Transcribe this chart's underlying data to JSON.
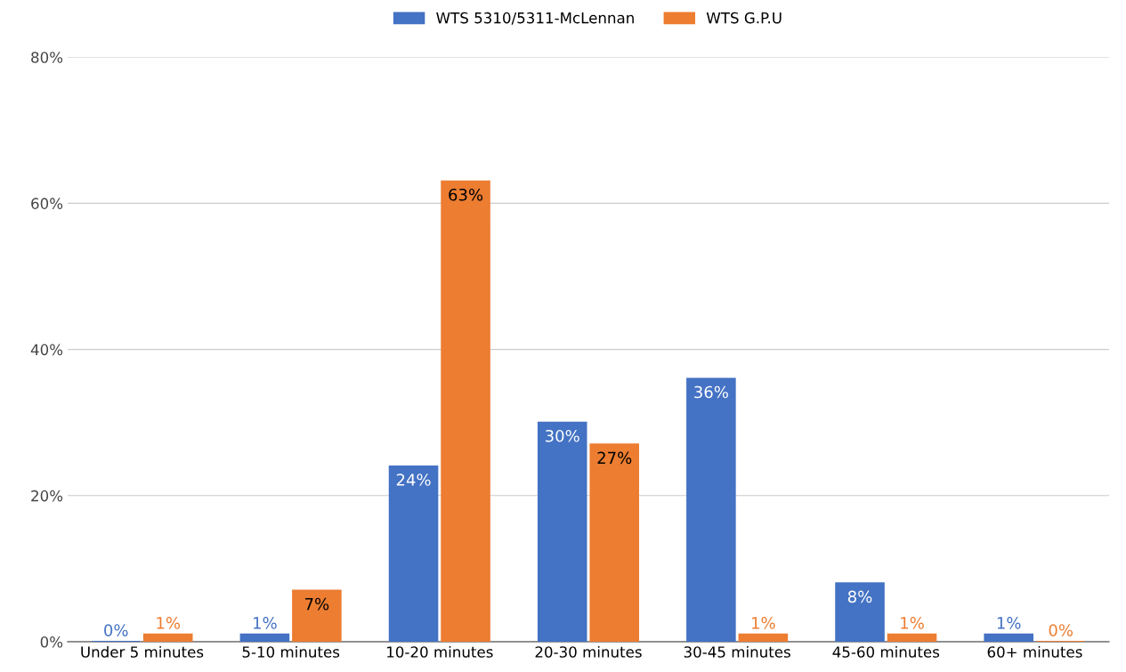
{
  "chart_data": {
    "type": "bar",
    "categories": [
      "Under 5 minutes",
      "5-10 minutes",
      "10-20 minutes",
      "20-30 minutes",
      "30-45 minutes",
      "45-60 minutes",
      "60+ minutes"
    ],
    "series": [
      {
        "name": "WTS 5310/5311-McLennan",
        "color": "#4472c4",
        "values": [
          0,
          1,
          24,
          30,
          36,
          8,
          1
        ],
        "value_labels": [
          "0%",
          "1%",
          "24%",
          "30%",
          "36%",
          "8%",
          "1%"
        ]
      },
      {
        "name": "WTS G.P.U",
        "color": "#ed7d31",
        "values": [
          1,
          7,
          63,
          27,
          1,
          1,
          0
        ],
        "value_labels": [
          "1%",
          "7%",
          "63%",
          "27%",
          "1%",
          "1%",
          "0%"
        ]
      }
    ],
    "ylim": [
      0,
      80
    ],
    "yticks": [
      {
        "value": 0,
        "label": "0%"
      },
      {
        "value": 20,
        "label": "20%"
      },
      {
        "value": 40,
        "label": "40%"
      },
      {
        "value": 60,
        "label": "60%"
      },
      {
        "value": 80,
        "label": "80%"
      }
    ],
    "grid": "y",
    "legend": "top"
  }
}
